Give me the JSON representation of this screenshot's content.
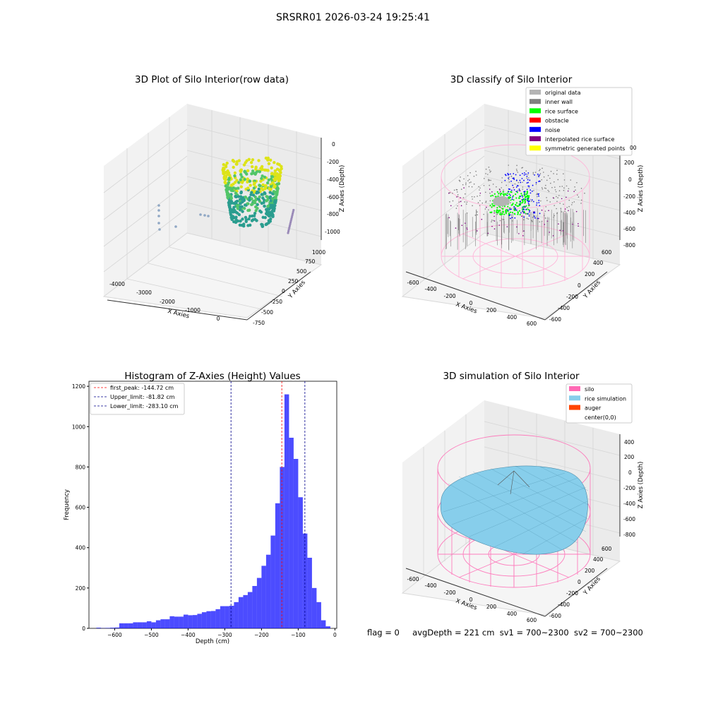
{
  "suptitle": "SRSRR01 2026-03-24 19:25:41",
  "status": {
    "flag": "flag = 0",
    "avg_depth": "avgDepth = 221 cm",
    "sv1": "sv1 = 700~2300",
    "sv2": "sv2 = 700~2300"
  },
  "chart_data": [
    {
      "type": "scatter",
      "title": "3D Plot of Silo Interior(row data)",
      "xlabel": "X Axies",
      "ylabel": "Y Axies",
      "zlabel": "Z Axies (Depth)",
      "x_ticks": [
        "-4000",
        "-3000",
        "-2000",
        "-1000",
        "0"
      ],
      "y_ticks": [
        "-750",
        "-500",
        "-250",
        "0",
        "250",
        "500",
        "750",
        "1000"
      ],
      "z_ticks": [
        "0",
        "-200",
        "-400",
        "-600",
        "-800",
        "-1000"
      ],
      "colors": {
        "low": "#2a9d8f",
        "mid": "#52c569",
        "high": "#dde318"
      }
    },
    {
      "type": "scatter",
      "title": "3D classify of Silo Interior",
      "xlabel": "X Axies",
      "ylabel": "Y Axies",
      "zlabel": "Z Axies (Depth)",
      "x_ticks": [
        "-600",
        "-400",
        "-200",
        "0",
        "200",
        "400",
        "600"
      ],
      "y_ticks": [
        "-600",
        "-400",
        "-200",
        "0",
        "200",
        "400",
        "600"
      ],
      "z_ticks": [
        "200",
        "0",
        "-200",
        "-400",
        "-600",
        "-800"
      ],
      "z_top_partial": "00",
      "legend": [
        {
          "label": "original data",
          "color": "#b4b4b4"
        },
        {
          "label": "inner wall",
          "color": "#808080"
        },
        {
          "label": "rice surface",
          "color": "#00ff00"
        },
        {
          "label": "obstacle",
          "color": "#ff0000"
        },
        {
          "label": "noise",
          "color": "#0000ff"
        },
        {
          "label": "interpolated rice surface",
          "color": "#800080"
        },
        {
          "label": "symmetric generated points",
          "color": "#ffff00"
        }
      ],
      "legend_loc": "upper right"
    },
    {
      "type": "bar",
      "title": "Histogram of Z-Axies (Height) Values",
      "xlabel": "Depth (cm)",
      "ylabel": "Frequency",
      "xlim": [
        -670,
        5
      ],
      "ylim": [
        0,
        1225
      ],
      "x_ticks": [
        -600,
        -500,
        -400,
        -300,
        -200,
        -100,
        0
      ],
      "y_ticks": [
        0,
        200,
        400,
        600,
        800,
        1000,
        1200
      ],
      "bin_width": 12.5,
      "bins_start": [
        -650,
        -637.5,
        -625,
        -612.5,
        -600,
        -587.5,
        -575,
        -562.5,
        -550,
        -537.5,
        -525,
        -512.5,
        -500,
        -487.5,
        -475,
        -462.5,
        -450,
        -437.5,
        -425,
        -412.5,
        -400,
        -387.5,
        -375,
        -362.5,
        -350,
        -337.5,
        -325,
        -312.5,
        -300,
        -287.5,
        -275,
        -262.5,
        -250,
        -237.5,
        -225,
        -212.5,
        -200,
        -187.5,
        -175,
        -162.5,
        -150,
        -137.5,
        -125,
        -112.5,
        -100,
        -87.5,
        -75,
        -62.5,
        -50,
        -37.5,
        -25
      ],
      "values": [
        3,
        1,
        2,
        3,
        4,
        25,
        25,
        25,
        30,
        30,
        30,
        35,
        30,
        40,
        45,
        45,
        60,
        58,
        58,
        68,
        65,
        66,
        72,
        80,
        85,
        86,
        95,
        110,
        110,
        112,
        130,
        155,
        165,
        180,
        210,
        250,
        310,
        365,
        460,
        620,
        800,
        1160,
        945,
        840,
        650,
        470,
        350,
        200,
        130,
        40,
        10
      ],
      "color": "#0000ff",
      "vlines": [
        {
          "label": "first_peak: -144.72 cm",
          "x": -144.72,
          "color": "#ff0000"
        },
        {
          "label": "Upper_limit: -81.82 cm",
          "x": -81.82,
          "color": "#00008b"
        },
        {
          "label": "Lower_limit: -283.10 cm",
          "x": -283.1,
          "color": "#00008b"
        }
      ],
      "legend_loc": "upper left"
    },
    {
      "type": "area",
      "title": "3D simulation of Silo Interior",
      "xlabel": "X Axies",
      "ylabel": "Y Axies",
      "zlabel": "Z Axies (Depth)",
      "x_ticks": [
        "-600",
        "-400",
        "-200",
        "0",
        "200",
        "400",
        "600"
      ],
      "y_ticks": [
        "-600",
        "-400",
        "-200",
        "0",
        "200",
        "400",
        "600"
      ],
      "z_ticks": [
        "400",
        "200",
        "0",
        "-200",
        "-400",
        "-600",
        "-800"
      ],
      "legend": [
        {
          "label": "silo",
          "color": "#ff69b4"
        },
        {
          "label": "rice simulation",
          "color": "#87ceeb"
        },
        {
          "label": "auger",
          "color": "#ff4500"
        },
        {
          "label": "center(0,0)",
          "color": "#ffffff"
        }
      ],
      "legend_loc": "upper right"
    }
  ]
}
